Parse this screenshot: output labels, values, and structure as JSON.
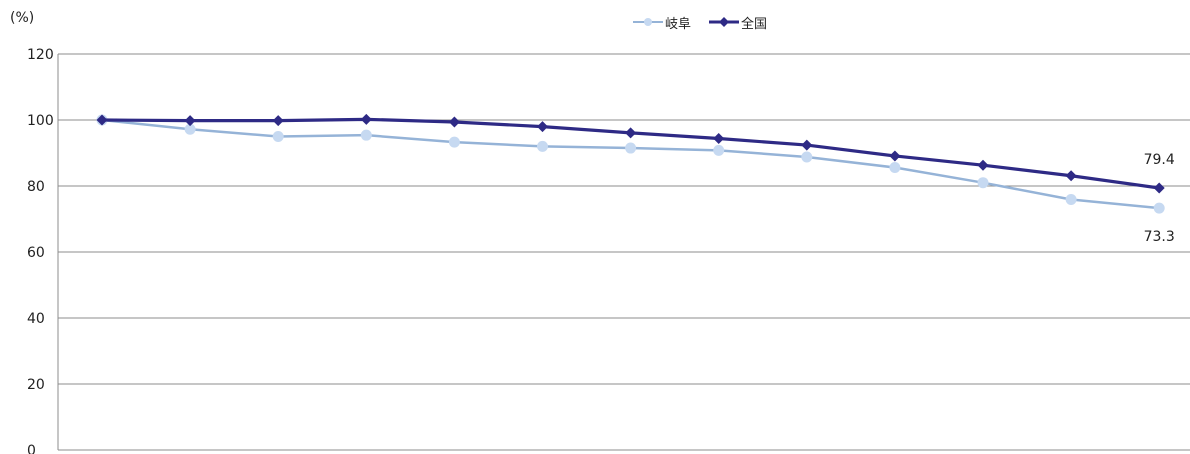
{
  "chart_data": {
    "type": "line",
    "ylabel": "(%)",
    "ylim": [
      0,
      120
    ],
    "yticks": [
      "0",
      "20",
      "40",
      "60",
      "80",
      "100",
      "120"
    ],
    "grid": true,
    "legend_position": "top-center",
    "x": [
      1,
      2,
      3,
      4,
      5,
      6,
      7,
      8,
      9,
      10,
      11,
      12,
      13
    ],
    "series": [
      {
        "name": "岐阜",
        "color": "#95b3d7",
        "marker": "circle",
        "values": [
          100,
          97.2,
          95.0,
          95.4,
          93.3,
          92.0,
          91.5,
          90.8,
          88.8,
          85.6,
          81.0,
          75.9,
          73.3
        ],
        "end_label": "73.3"
      },
      {
        "name": "全国",
        "color": "#2e2a85",
        "marker": "diamond",
        "values": [
          100,
          99.8,
          99.8,
          100.2,
          99.4,
          98.0,
          96.1,
          94.4,
          92.4,
          89.1,
          86.3,
          83.1,
          79.4
        ],
        "end_label": "79.4"
      }
    ]
  }
}
